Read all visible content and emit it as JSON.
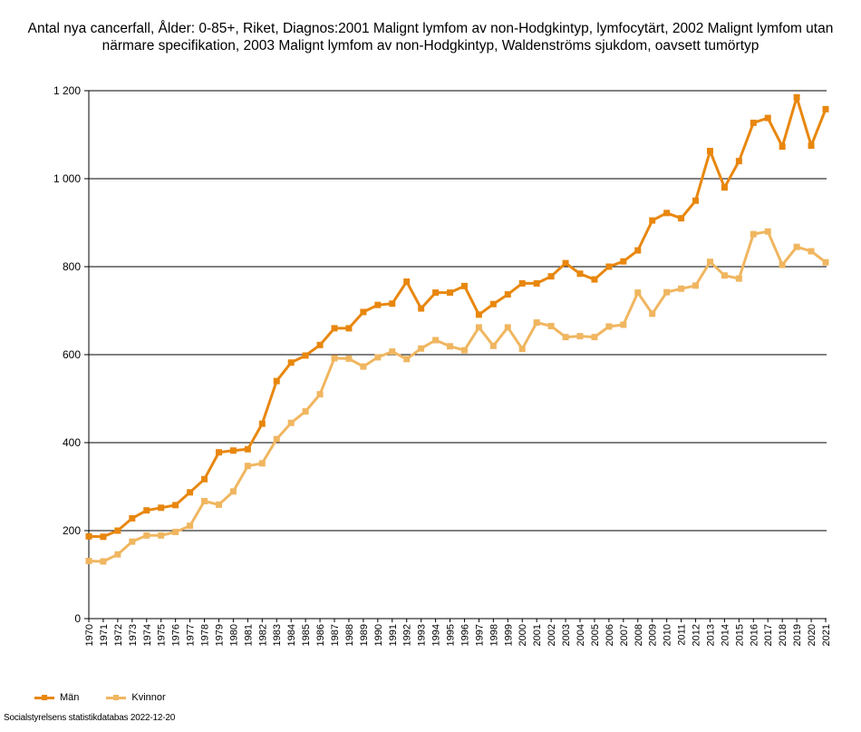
{
  "chart_data": {
    "type": "line",
    "title": "Antal nya cancerfall, Ålder: 0-85+, Riket, Diagnos:2001 Malignt lymfom av non-Hodgkintyp, lymfocytärt, 2002 Malignt lymfom utan närmare specifikation, 2003 Malignt lymfom av non-Hodgkintyp, Waldenströms sjukdom, oavsett tumörtyp",
    "x": [
      "1970",
      "1971",
      "1972",
      "1973",
      "1974",
      "1975",
      "1976",
      "1977",
      "1978",
      "1979",
      "1980",
      "1981",
      "1982",
      "1983",
      "1984",
      "1985",
      "1986",
      "1987",
      "1988",
      "1989",
      "1990",
      "1991",
      "1992",
      "1993",
      "1994",
      "1995",
      "1996",
      "1997",
      "1998",
      "1999",
      "2000",
      "2001",
      "2002",
      "2003",
      "2004",
      "2005",
      "2006",
      "2007",
      "2008",
      "2009",
      "2010",
      "2011",
      "2012",
      "2013",
      "2014",
      "2015",
      "2016",
      "2017",
      "2018",
      "2019",
      "2020",
      "2021"
    ],
    "series": [
      {
        "name": "Män",
        "color": "#e8870e",
        "values": [
          187,
          186,
          200,
          228,
          246,
          252,
          258,
          287,
          317,
          378,
          382,
          385,
          443,
          540,
          582,
          598,
          622,
          660,
          660,
          697,
          713,
          716,
          766,
          705,
          741,
          741,
          756,
          691,
          715,
          737,
          762,
          762,
          778,
          808,
          784,
          771,
          800,
          812,
          837,
          905,
          922,
          910,
          950,
          1063,
          980,
          1040,
          1127,
          1138,
          1073,
          1185,
          1075,
          1158
        ]
      },
      {
        "name": "Kvinnor",
        "color": "#f0b660",
        "values": [
          131,
          130,
          146,
          175,
          189,
          189,
          197,
          211,
          267,
          259,
          289,
          347,
          353,
          408,
          445,
          471,
          510,
          592,
          591,
          573,
          594,
          607,
          590,
          614,
          633,
          619,
          610,
          662,
          620,
          662,
          613,
          673,
          665,
          640,
          642,
          640,
          664,
          668,
          741,
          693,
          742,
          750,
          757,
          811,
          780,
          773,
          874,
          880,
          804,
          845,
          835,
          810
        ]
      }
    ],
    "y_ticks": [
      "0",
      "200",
      "400",
      "600",
      "800",
      "1 000",
      "1 200"
    ],
    "ylim": [
      0,
      1200
    ],
    "grid": true,
    "legend_position": "bottom-left"
  },
  "footer": {
    "source": "Socialstyrelsens statistikdatabas 2022-12-20"
  }
}
